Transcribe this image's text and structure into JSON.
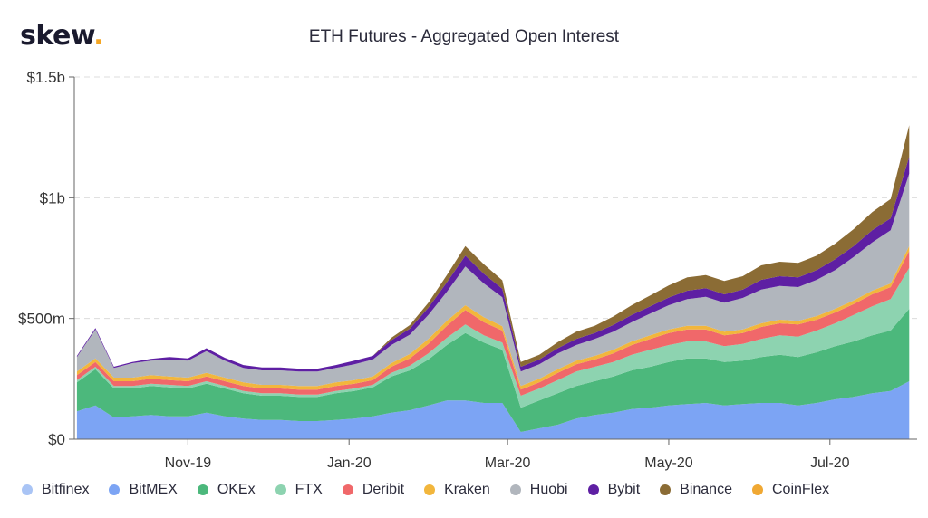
{
  "brand": {
    "name": "skew",
    "dot": "."
  },
  "chart_data": {
    "type": "area",
    "stacked": true,
    "title": "ETH Futures - Aggregated Open Interest",
    "y_tick_labels": [
      "$0",
      "$500m",
      "$1b",
      "$1.5b"
    ],
    "y_tick_values": [
      0,
      500,
      1000,
      1500
    ],
    "ylim": [
      0,
      1500
    ],
    "y_unit": "millions USD",
    "x": [
      "2019-09-20",
      "2019-09-27",
      "2019-10-04",
      "2019-10-11",
      "2019-10-18",
      "2019-10-25",
      "2019-11-01",
      "2019-11-08",
      "2019-11-15",
      "2019-11-22",
      "2019-11-29",
      "2019-12-06",
      "2019-12-13",
      "2019-12-20",
      "2019-12-27",
      "2020-01-03",
      "2020-01-10",
      "2020-01-17",
      "2020-01-24",
      "2020-01-31",
      "2020-02-07",
      "2020-02-14",
      "2020-02-21",
      "2020-02-28",
      "2020-03-06",
      "2020-03-13",
      "2020-03-20",
      "2020-03-27",
      "2020-04-03",
      "2020-04-10",
      "2020-04-17",
      "2020-04-24",
      "2020-05-01",
      "2020-05-08",
      "2020-05-15",
      "2020-05-22",
      "2020-05-29",
      "2020-06-05",
      "2020-06-12",
      "2020-06-19",
      "2020-06-26",
      "2020-07-03",
      "2020-07-10",
      "2020-07-17",
      "2020-07-24",
      "2020-07-31"
    ],
    "x_tick_labels": [
      "Nov-19",
      "Jan-20",
      "Mar-20",
      "May-20",
      "Jul-20"
    ],
    "x_tick_dates": [
      "2019-11-01",
      "2020-01-01",
      "2020-03-01",
      "2020-05-01",
      "2020-07-01"
    ],
    "xlim": [
      "2019-09-19",
      "2020-08-03"
    ],
    "grid": true,
    "legend_position": "bottom",
    "series": [
      {
        "name": "Bitfinex",
        "color": "#a9c4f5",
        "values": [
          0,
          0,
          0,
          0,
          0,
          0,
          0,
          0,
          0,
          0,
          0,
          0,
          0,
          0,
          0,
          0,
          0,
          0,
          0,
          0,
          0,
          0,
          0,
          0,
          0,
          0,
          0,
          0,
          0,
          0,
          0,
          0,
          0,
          0,
          0,
          0,
          0,
          0,
          0,
          0,
          0,
          0,
          0,
          0,
          0,
          0
        ]
      },
      {
        "name": "BitMEX",
        "color": "#7ca4f4",
        "values": [
          115,
          140,
          90,
          95,
          100,
          95,
          95,
          110,
          95,
          85,
          80,
          80,
          75,
          75,
          80,
          85,
          95,
          110,
          120,
          140,
          160,
          160,
          150,
          150,
          30,
          45,
          60,
          85,
          100,
          110,
          125,
          130,
          140,
          145,
          150,
          140,
          145,
          150,
          150,
          140,
          150,
          165,
          175,
          190,
          200,
          240
        ]
      },
      {
        "name": "OKEx",
        "color": "#4cb87c",
        "values": [
          120,
          150,
          120,
          115,
          120,
          120,
          115,
          120,
          115,
          105,
          100,
          100,
          100,
          100,
          110,
          115,
          120,
          150,
          165,
          190,
          230,
          280,
          250,
          220,
          100,
          115,
          130,
          135,
          140,
          150,
          160,
          170,
          180,
          190,
          185,
          180,
          180,
          190,
          200,
          200,
          210,
          220,
          230,
          240,
          250,
          300
        ]
      },
      {
        "name": "FTX",
        "color": "#8dd3b0",
        "values": [
          10,
          10,
          10,
          10,
          10,
          10,
          10,
          10,
          10,
          10,
          10,
          10,
          10,
          10,
          10,
          10,
          10,
          15,
          20,
          25,
          30,
          35,
          30,
          30,
          50,
          50,
          55,
          60,
          60,
          60,
          65,
          70,
          70,
          70,
          70,
          65,
          70,
          75,
          80,
          85,
          90,
          95,
          110,
          120,
          130,
          170
        ]
      },
      {
        "name": "Deribit",
        "color": "#f0686a",
        "values": [
          20,
          20,
          20,
          20,
          20,
          20,
          20,
          20,
          20,
          20,
          20,
          20,
          20,
          20,
          20,
          20,
          20,
          25,
          30,
          40,
          50,
          60,
          55,
          50,
          25,
          25,
          30,
          30,
          30,
          35,
          40,
          45,
          50,
          50,
          50,
          45,
          45,
          50,
          50,
          50,
          45,
          45,
          45,
          50,
          50,
          70
        ]
      },
      {
        "name": "Kraken",
        "color": "#f2b63c",
        "values": [
          15,
          15,
          15,
          15,
          15,
          15,
          15,
          15,
          15,
          15,
          15,
          15,
          15,
          15,
          15,
          15,
          15,
          15,
          18,
          20,
          20,
          20,
          20,
          18,
          15,
          15,
          15,
          15,
          15,
          15,
          15,
          15,
          15,
          15,
          15,
          15,
          15,
          15,
          15,
          15,
          15,
          15,
          15,
          15,
          15,
          20
        ]
      },
      {
        "name": "Huobi",
        "color": "#b1b6bd",
        "values": [
          60,
          120,
          40,
          60,
          60,
          70,
          70,
          90,
          70,
          60,
          60,
          60,
          60,
          60,
          60,
          65,
          70,
          75,
          80,
          100,
          120,
          160,
          140,
          120,
          60,
          60,
          65,
          65,
          70,
          75,
          80,
          90,
          100,
          110,
          120,
          120,
          130,
          140,
          140,
          140,
          150,
          160,
          180,
          200,
          220,
          300
        ]
      },
      {
        "name": "Bybit",
        "color": "#5e1fa3",
        "values": [
          5,
          5,
          5,
          5,
          8,
          10,
          10,
          12,
          12,
          12,
          12,
          12,
          12,
          12,
          12,
          15,
          15,
          20,
          25,
          30,
          40,
          45,
          40,
          35,
          20,
          20,
          22,
          25,
          25,
          28,
          30,
          30,
          32,
          35,
          35,
          35,
          35,
          40,
          40,
          40,
          40,
          45,
          45,
          50,
          50,
          70
        ]
      },
      {
        "name": "Binance",
        "color": "#8b6c35",
        "values": [
          0,
          0,
          0,
          0,
          0,
          0,
          0,
          0,
          0,
          0,
          0,
          0,
          0,
          0,
          0,
          0,
          0,
          10,
          15,
          20,
          30,
          40,
          40,
          35,
          20,
          20,
          25,
          30,
          30,
          35,
          40,
          45,
          50,
          55,
          55,
          55,
          55,
          60,
          60,
          60,
          60,
          65,
          70,
          75,
          80,
          130
        ]
      },
      {
        "name": "CoinFlex",
        "color": "#f0a833",
        "values": [
          0,
          0,
          0,
          0,
          0,
          0,
          0,
          0,
          0,
          0,
          0,
          0,
          0,
          0,
          0,
          0,
          0,
          0,
          0,
          0,
          0,
          0,
          0,
          0,
          0,
          0,
          0,
          0,
          0,
          0,
          0,
          0,
          0,
          0,
          0,
          0,
          0,
          0,
          0,
          0,
          0,
          0,
          0,
          0,
          0,
          0
        ]
      }
    ]
  },
  "colors": {
    "grid": "#dcdcdc",
    "axis": "#666666"
  },
  "icons": {
    "legend_marker": "circle-dot"
  }
}
